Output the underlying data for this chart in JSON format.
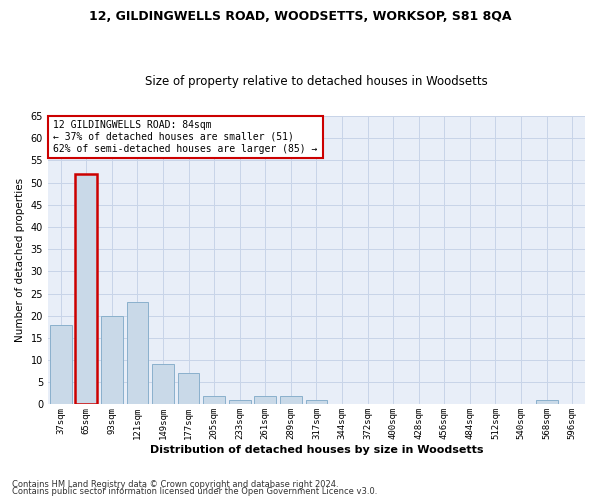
{
  "title": "12, GILDINGWELLS ROAD, WOODSETTS, WORKSOP, S81 8QA",
  "subtitle": "Size of property relative to detached houses in Woodsetts",
  "xlabel": "Distribution of detached houses by size in Woodsetts",
  "ylabel": "Number of detached properties",
  "bar_color": "#c9d9e8",
  "bar_edge_color": "#8ab0cc",
  "annotation_box_color": "#cc0000",
  "annotation_line1": "12 GILDINGWELLS ROAD: 84sqm",
  "annotation_line2": "← 37% of detached houses are smaller (51)",
  "annotation_line3": "62% of semi-detached houses are larger (85) →",
  "highlight_index": 1,
  "categories": [
    "37sqm",
    "65sqm",
    "93sqm",
    "121sqm",
    "149sqm",
    "177sqm",
    "205sqm",
    "233sqm",
    "261sqm",
    "289sqm",
    "317sqm",
    "344sqm",
    "372sqm",
    "400sqm",
    "428sqm",
    "456sqm",
    "484sqm",
    "512sqm",
    "540sqm",
    "568sqm",
    "596sqm"
  ],
  "values": [
    18,
    52,
    20,
    23,
    9,
    7,
    2,
    1,
    2,
    2,
    1,
    0,
    0,
    0,
    0,
    0,
    0,
    0,
    0,
    1,
    0
  ],
  "ylim": [
    0,
    65
  ],
  "yticks": [
    0,
    5,
    10,
    15,
    20,
    25,
    30,
    35,
    40,
    45,
    50,
    55,
    60,
    65
  ],
  "grid_color": "#c8d4e8",
  "background_color": "#e8eef8",
  "footnote1": "Contains HM Land Registry data © Crown copyright and database right 2024.",
  "footnote2": "Contains public sector information licensed under the Open Government Licence v3.0."
}
